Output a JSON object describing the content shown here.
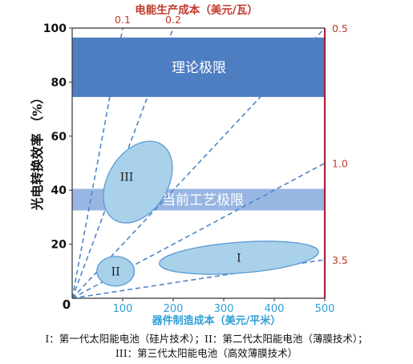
{
  "chart_data": {
    "type": "scatter",
    "xlabel": "器件制造成本（美元/平米）",
    "ylabel": "光电转换效率 （%）",
    "top_axis_label": "电能生产成本（美元/瓦）",
    "xlim": [
      0,
      500
    ],
    "ylim": [
      0,
      100
    ],
    "x_ticks": [
      100,
      200,
      300,
      400,
      500
    ],
    "y_ticks": [
      20,
      40,
      60,
      80,
      100
    ],
    "origin_label": "0",
    "cost_per_watt_lines": [
      {
        "label": "0.1",
        "label_side": "top",
        "cost_per_watt": 0.1
      },
      {
        "label": "0.2",
        "label_side": "top",
        "cost_per_watt": 0.2
      },
      {
        "label": "0.5",
        "label_side": "right",
        "cost_per_watt": 0.5
      },
      {
        "label": "1.0",
        "label_side": "right",
        "cost_per_watt": 1.0
      },
      {
        "label": "3.5",
        "label_side": "right",
        "cost_per_watt": 3.5
      }
    ],
    "bands": [
      {
        "label": "理论极限",
        "y_from": 74.5,
        "y_to": 96.5,
        "color": "#4e7ec2",
        "text_color": "#ffffff"
      },
      {
        "label": "当前工艺极限",
        "y_from": 32.5,
        "y_to": 40.5,
        "color": "#98b6e2",
        "text_color": "#ffffff"
      }
    ],
    "regions": [
      {
        "label": "I",
        "cx": 330,
        "cy": 15,
        "rx": 158,
        "ry": 5.7,
        "angle": 4.3
      },
      {
        "label": "II",
        "cx": 86,
        "cy": 10,
        "rx": 37,
        "ry": 5.5,
        "angle": 0
      },
      {
        "label": "III",
        "cx": 130,
        "cy": 43,
        "rx": 88,
        "ry": 11,
        "angle": 58
      }
    ],
    "colors": {
      "region_fill": "#a9d1ea",
      "region_stroke": "#5b9bd5",
      "dashed_line": "#4f86c6",
      "right_axis": "#a4243b",
      "top_text": "#c0392b",
      "x_axis_text": "#2e9fd8",
      "axis": "#333333"
    }
  },
  "caption": {
    "line1": "I：第一代太阳能电池（硅片技术）；II：第二代太阳能电池（薄膜技术）；",
    "line2": "III：第三代太阳能电池（高效薄膜技术）"
  }
}
